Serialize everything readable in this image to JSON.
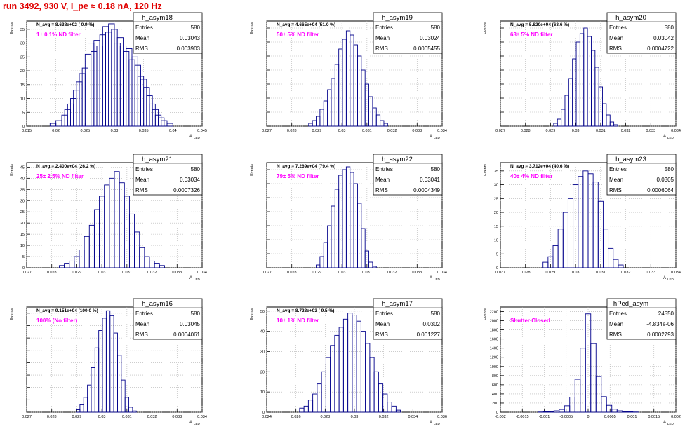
{
  "title": "run 3492,   930 V, I_pe ≈ 0.18 nA, 120 Hz",
  "colors": {
    "title": "#e00000",
    "line": "#00008b",
    "annotation": "#ff00ff",
    "grid": "#b0b0b0"
  },
  "chart_data": [
    {
      "type": "histogram",
      "name": "h_asym18",
      "ylabel": "Events",
      "xlabel": "A",
      "xlabel_sub": "LED",
      "xticks": [
        "0.015",
        "0.02",
        "0.025",
        "0.03",
        "0.035",
        "0.04",
        "0.045"
      ],
      "xlim": [
        0.015,
        0.045
      ],
      "yticks": [
        "0",
        "5",
        "10",
        "15",
        "20",
        "25",
        "30",
        "35"
      ],
      "ylim": [
        0,
        38
      ],
      "grid": true,
      "stats": {
        "navg": "N_avg = 8.638e+02 ( 0.9 %)",
        "entries_label": "Entries",
        "entries": "580",
        "mean_label": "Mean",
        "mean": "0.03043",
        "rms_label": "RMS",
        "rms": "0.003903"
      },
      "annotation": "1± 0.1% ND filter",
      "bins": [
        [
          0.0195,
          1
        ],
        [
          0.0205,
          2
        ],
        [
          0.0215,
          4
        ],
        [
          0.022,
          6
        ],
        [
          0.0225,
          8
        ],
        [
          0.023,
          10
        ],
        [
          0.0235,
          13
        ],
        [
          0.024,
          16
        ],
        [
          0.0245,
          19
        ],
        [
          0.025,
          21
        ],
        [
          0.0255,
          26
        ],
        [
          0.026,
          30
        ],
        [
          0.0265,
          27
        ],
        [
          0.027,
          31
        ],
        [
          0.0275,
          29
        ],
        [
          0.028,
          33
        ],
        [
          0.0285,
          36
        ],
        [
          0.029,
          34
        ],
        [
          0.0295,
          37
        ],
        [
          0.03,
          35
        ],
        [
          0.0305,
          30
        ],
        [
          0.031,
          32
        ],
        [
          0.0315,
          29
        ],
        [
          0.032,
          27
        ],
        [
          0.0325,
          28
        ],
        [
          0.033,
          24
        ],
        [
          0.0335,
          25
        ],
        [
          0.034,
          22
        ],
        [
          0.0345,
          18
        ],
        [
          0.035,
          17
        ],
        [
          0.0355,
          14
        ],
        [
          0.036,
          11
        ],
        [
          0.0365,
          8
        ],
        [
          0.037,
          6
        ],
        [
          0.0375,
          4
        ],
        [
          0.038,
          3
        ],
        [
          0.0385,
          2
        ],
        [
          0.0395,
          1
        ]
      ]
    },
    {
      "type": "histogram",
      "name": "h_asym19",
      "ylabel": "Events",
      "xlabel": "A",
      "xlabel_sub": "LED",
      "xticks": [
        "0.027",
        "0.028",
        "0.029",
        "0.03",
        "0.031",
        "0.032",
        "0.033",
        "0.034"
      ],
      "xlim": [
        0.027,
        0.034
      ],
      "yticks": [],
      "ylim": [
        0,
        75
      ],
      "grid": true,
      "stats": {
        "navg": "N_avg = 4.665e+04 (51.0 %)",
        "entries_label": "Entries",
        "entries": "580",
        "mean_label": "Mean",
        "mean": "0.03024",
        "rms_label": "RMS",
        "rms": "0.0005455"
      },
      "annotation": "50± 5% ND filter",
      "bins": [
        [
          0.02875,
          2
        ],
        [
          0.0289,
          4
        ],
        [
          0.02905,
          7
        ],
        [
          0.0292,
          12
        ],
        [
          0.02935,
          18
        ],
        [
          0.0295,
          26
        ],
        [
          0.02965,
          34
        ],
        [
          0.0298,
          44
        ],
        [
          0.02995,
          55
        ],
        [
          0.0301,
          62
        ],
        [
          0.03025,
          68
        ],
        [
          0.0304,
          65
        ],
        [
          0.03055,
          58
        ],
        [
          0.0307,
          50
        ],
        [
          0.03085,
          40
        ],
        [
          0.031,
          30
        ],
        [
          0.03115,
          21
        ],
        [
          0.0313,
          13
        ],
        [
          0.03145,
          8
        ],
        [
          0.0316,
          4
        ],
        [
          0.03175,
          2
        ]
      ]
    },
    {
      "type": "histogram",
      "name": "h_asym20",
      "ylabel": "Events",
      "xlabel": "A",
      "xlabel_sub": "LED",
      "xticks": [
        "0.027",
        "0.028",
        "0.029",
        "0.03",
        "0.031",
        "0.032",
        "0.033",
        "0.034"
      ],
      "xlim": [
        0.027,
        0.034
      ],
      "yticks": [],
      "ylim": [
        0,
        75
      ],
      "grid": true,
      "stats": {
        "navg": "N_avg = 5.820e+04 (63.6 %)",
        "entries_label": "Entries",
        "entries": "580",
        "mean_label": "Mean",
        "mean": "0.03042",
        "rms_label": "RMS",
        "rms": "0.0004722"
      },
      "annotation": "63± 5% ND filter",
      "bins": [
        [
          0.0292,
          2
        ],
        [
          0.02935,
          5
        ],
        [
          0.0295,
          12
        ],
        [
          0.02965,
          22
        ],
        [
          0.0298,
          34
        ],
        [
          0.02995,
          48
        ],
        [
          0.0301,
          60
        ],
        [
          0.03025,
          66
        ],
        [
          0.0304,
          70
        ],
        [
          0.03055,
          64
        ],
        [
          0.0307,
          54
        ],
        [
          0.03085,
          42
        ],
        [
          0.031,
          28
        ],
        [
          0.03115,
          16
        ],
        [
          0.0313,
          8
        ],
        [
          0.03145,
          3
        ],
        [
          0.0316,
          1
        ]
      ]
    },
    {
      "type": "histogram",
      "name": "h_asym21",
      "ylabel": "Events",
      "xlabel": "A",
      "xlabel_sub": "LED",
      "xticks": [
        "0.027",
        "0.028",
        "0.029",
        "0.03",
        "0.031",
        "0.032",
        "0.033",
        "0.034"
      ],
      "xlim": [
        0.027,
        0.034
      ],
      "yticks": [
        "0",
        "5",
        "10",
        "15",
        "20",
        "25",
        "30",
        "35",
        "40",
        "45"
      ],
      "ylim": [
        0,
        47
      ],
      "grid": true,
      "stats": {
        "navg": "N_avg = 2.400e+04 (26.2 %)",
        "entries_label": "Entries",
        "entries": "580",
        "mean_label": "Mean",
        "mean": "0.03034",
        "rms_label": "RMS",
        "rms": "0.0007326"
      },
      "annotation": "25± 2.5% ND filter",
      "bins": [
        [
          0.0284,
          1
        ],
        [
          0.0286,
          2
        ],
        [
          0.0288,
          3
        ],
        [
          0.029,
          5
        ],
        [
          0.0292,
          8
        ],
        [
          0.0294,
          14
        ],
        [
          0.0296,
          19
        ],
        [
          0.0298,
          26
        ],
        [
          0.03,
          32
        ],
        [
          0.0302,
          37
        ],
        [
          0.0304,
          40
        ],
        [
          0.0306,
          43
        ],
        [
          0.0308,
          38
        ],
        [
          0.031,
          32
        ],
        [
          0.0312,
          24
        ],
        [
          0.0314,
          16
        ],
        [
          0.0316,
          9
        ],
        [
          0.0318,
          5
        ],
        [
          0.032,
          3
        ],
        [
          0.0322,
          2
        ],
        [
          0.0324,
          1
        ]
      ]
    },
    {
      "type": "histogram",
      "name": "h_asym22",
      "ylabel": "Events",
      "xlabel": "A",
      "xlabel_sub": "LED",
      "xticks": [
        "0.027",
        "0.028",
        "0.029",
        "0.03",
        "0.031",
        "0.032",
        "0.033",
        "0.034"
      ],
      "xlim": [
        0.027,
        0.034
      ],
      "yticks": [],
      "ylim": [
        0,
        75
      ],
      "grid": true,
      "stats": {
        "navg": "N_avg = 7.269e+04 (79.4 %)",
        "entries_label": "Entries",
        "entries": "580",
        "mean_label": "Mean",
        "mean": "0.03041",
        "rms_label": "RMS",
        "rms": "0.0004349"
      },
      "annotation": "79± 5% ND filter",
      "bins": [
        [
          0.02905,
          2
        ],
        [
          0.0292,
          8
        ],
        [
          0.02935,
          18
        ],
        [
          0.0295,
          30
        ],
        [
          0.02965,
          44
        ],
        [
          0.0298,
          56
        ],
        [
          0.02995,
          66
        ],
        [
          0.0301,
          70
        ],
        [
          0.03025,
          72
        ],
        [
          0.0304,
          68
        ],
        [
          0.03055,
          60
        ],
        [
          0.0307,
          46
        ],
        [
          0.03085,
          28
        ],
        [
          0.031,
          12
        ],
        [
          0.03115,
          4
        ],
        [
          0.0313,
          1
        ]
      ]
    },
    {
      "type": "histogram",
      "name": "h_asym23",
      "ylabel": "Events",
      "xlabel": "A",
      "xlabel_sub": "LED",
      "xticks": [
        "0.027",
        "0.028",
        "0.029",
        "0.03",
        "0.031",
        "0.032",
        "0.033",
        "0.034"
      ],
      "xlim": [
        0.027,
        0.034
      ],
      "yticks": [
        "0",
        "5",
        "10",
        "15",
        "20",
        "25",
        "30",
        "35"
      ],
      "ylim": [
        0,
        38
      ],
      "grid": true,
      "stats": {
        "navg": "N_avg = 3.712e+04 (40.6 %)",
        "entries_label": "Entries",
        "entries": "580",
        "mean_label": "Mean",
        "mean": "0.0305",
        "rms_label": "RMS",
        "rms": "0.0006064"
      },
      "annotation": "40± 4% ND filter",
      "bins": [
        [
          0.0288,
          2
        ],
        [
          0.029,
          4
        ],
        [
          0.0292,
          8
        ],
        [
          0.0294,
          14
        ],
        [
          0.0296,
          20
        ],
        [
          0.0298,
          25
        ],
        [
          0.03,
          30
        ],
        [
          0.0302,
          33
        ],
        [
          0.0304,
          35
        ],
        [
          0.0306,
          34
        ],
        [
          0.0308,
          31
        ],
        [
          0.031,
          24
        ],
        [
          0.0312,
          14
        ],
        [
          0.0314,
          7
        ],
        [
          0.0316,
          3
        ],
        [
          0.0318,
          1
        ]
      ]
    },
    {
      "type": "histogram",
      "name": "h_asym16",
      "ylabel": "Events",
      "xlabel": "A",
      "xlabel_sub": "LED",
      "xticks": [
        "0.027",
        "0.028",
        "0.029",
        "0.03",
        "0.031",
        "0.032",
        "0.033",
        "0.034"
      ],
      "xlim": [
        0.027,
        0.034
      ],
      "yticks": [],
      "ylim": [
        0,
        85
      ],
      "grid": true,
      "stats": {
        "navg": "N_avg = 9.151e+04 (100.0 %)",
        "entries_label": "Entries",
        "entries": "580",
        "mean_label": "Mean",
        "mean": "0.03045",
        "rms_label": "RMS",
        "rms": "0.0004061"
      },
      "annotation": "100% (No filter)",
      "bins": [
        [
          0.02905,
          2
        ],
        [
          0.0292,
          6
        ],
        [
          0.02935,
          12
        ],
        [
          0.0295,
          22
        ],
        [
          0.02965,
          36
        ],
        [
          0.0298,
          52
        ],
        [
          0.02995,
          66
        ],
        [
          0.0301,
          76
        ],
        [
          0.03025,
          82
        ],
        [
          0.0304,
          78
        ],
        [
          0.03055,
          64
        ],
        [
          0.0307,
          46
        ],
        [
          0.03085,
          26
        ],
        [
          0.031,
          12
        ],
        [
          0.03115,
          4
        ],
        [
          0.0313,
          1
        ]
      ]
    },
    {
      "type": "histogram",
      "name": "h_asym17",
      "ylabel": "Events",
      "xlabel": "A",
      "xlabel_sub": "LED",
      "xticks": [
        "0.024",
        "0.026",
        "0.028",
        "0.03",
        "0.032",
        "0.034",
        "0.036"
      ],
      "xlim": [
        0.024,
        0.036
      ],
      "yticks": [
        "0",
        "10",
        "20",
        "30",
        "40",
        "50"
      ],
      "ylim": [
        0,
        52
      ],
      "grid": true,
      "stats": {
        "navg": "N_avg = 8.723e+03 ( 9.5 %)",
        "entries_label": "Entries",
        "entries": "580",
        "mean_label": "Mean",
        "mean": "0.0302",
        "rms_label": "RMS",
        "rms": "0.001227"
      },
      "annotation": "10± 1% ND filter",
      "bins": [
        [
          0.0264,
          2
        ],
        [
          0.0267,
          3
        ],
        [
          0.027,
          6
        ],
        [
          0.0273,
          9
        ],
        [
          0.0276,
          14
        ],
        [
          0.0279,
          20
        ],
        [
          0.0282,
          27
        ],
        [
          0.0285,
          33
        ],
        [
          0.0288,
          38
        ],
        [
          0.0291,
          42
        ],
        [
          0.0294,
          46
        ],
        [
          0.0297,
          49
        ],
        [
          0.03,
          48
        ],
        [
          0.0303,
          45
        ],
        [
          0.0306,
          40
        ],
        [
          0.0309,
          34
        ],
        [
          0.0312,
          27
        ],
        [
          0.0315,
          20
        ],
        [
          0.0318,
          14
        ],
        [
          0.0321,
          9
        ],
        [
          0.0324,
          5
        ],
        [
          0.0327,
          3
        ],
        [
          0.033,
          1
        ]
      ]
    },
    {
      "type": "histogram",
      "name": "hPed_asym",
      "ylabel": "Events",
      "xlabel": "A",
      "xlabel_sub": "LED",
      "xticks": [
        "-0.002",
        "-0.0015",
        "-0.001",
        "-0.0005",
        "0",
        "0.0005",
        "0.001",
        "0.0015",
        "0.002"
      ],
      "xlim": [
        -0.002,
        0.002
      ],
      "yticks": [
        "0",
        "200",
        "400",
        "600",
        "800",
        "1000",
        "1200",
        "1400",
        "1600",
        "1800",
        "2000",
        "2200"
      ],
      "ylim": [
        0,
        2300
      ],
      "grid": true,
      "stats": {
        "navg": "",
        "entries_label": "Entries",
        "entries": "24550",
        "mean_label": "Mean",
        "mean": "-4.834e-06",
        "rms_label": "RMS",
        "rms": "0.0002793"
      },
      "annotation": "Shutter Closed",
      "bins": [
        [
          -0.00108,
          4
        ],
        [
          -0.00096,
          8
        ],
        [
          -0.00084,
          15
        ],
        [
          -0.00072,
          30
        ],
        [
          -0.0006,
          60
        ],
        [
          -0.00048,
          140
        ],
        [
          -0.00036,
          330
        ],
        [
          -0.00024,
          720
        ],
        [
          -0.00012,
          1400
        ],
        [
          0,
          2150
        ],
        [
          0.00012,
          1500
        ],
        [
          0.00024,
          780
        ],
        [
          0.00036,
          340
        ],
        [
          0.00048,
          150
        ],
        [
          0.0006,
          65
        ],
        [
          0.00072,
          30
        ],
        [
          0.00084,
          15
        ],
        [
          0.00096,
          8
        ],
        [
          0.00108,
          4
        ]
      ]
    }
  ]
}
